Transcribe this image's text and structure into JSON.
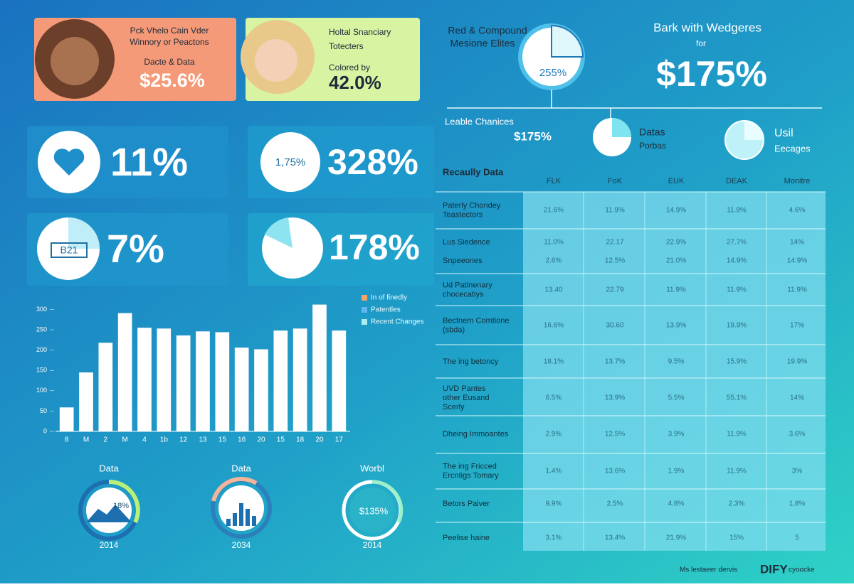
{
  "profile_cards": [
    {
      "lines": [
        "Pck Vhelo Cain Vder",
        "Winnory or Peactons"
      ],
      "caption": "Dacte & Data",
      "value": "$25.6%"
    },
    {
      "lines": [
        "Holtal Snanciary",
        "Totecters"
      ],
      "caption": "Colored by",
      "value": "42.0%"
    }
  ],
  "stat_cards": [
    {
      "value": "11%"
    },
    {
      "badge": "1,75%",
      "value": "328%"
    },
    {
      "badge": "B21",
      "value": "7%"
    },
    {
      "value": "178%"
    }
  ],
  "top_right": {
    "donut_title": [
      "Red & Compound",
      "Mesione Elites"
    ],
    "donut_value": "255%",
    "headline": "Bark with Wedgeres",
    "headline_sub": "for",
    "headline_value": "$175%",
    "left_label": "Leable Chanices",
    "left_value": "$175%",
    "mid_label": [
      "Datas",
      "Porbas"
    ],
    "right_label": [
      "Usil",
      "Eecages"
    ]
  },
  "chart_data": {
    "type": "bar",
    "categories": [
      "8",
      "M",
      "2",
      "M",
      "4",
      "1b",
      "12",
      "13",
      "15",
      "16",
      "20",
      "15",
      "18",
      "20",
      "17"
    ],
    "values": [
      59,
      145,
      218,
      291,
      255,
      253,
      236,
      246,
      244,
      206,
      202,
      248,
      253,
      312,
      248
    ],
    "color": "#ffffff",
    "ylim": [
      0,
      320
    ],
    "yticks": [
      0,
      50,
      100,
      150,
      200,
      250,
      300
    ]
  },
  "legend_items": [
    {
      "label": "In of finedly",
      "color": "#f4a46a"
    },
    {
      "label": "Patentles",
      "color": "#5fb8f0"
    },
    {
      "label": "Recent Changes",
      "color": "#a8eef0"
    }
  ],
  "gauges": [
    {
      "title": "Data",
      "value": "18%",
      "year": "2014"
    },
    {
      "title": "Data",
      "year": "2034"
    },
    {
      "title": "Worbl",
      "value": "$135%",
      "year": "2014"
    }
  ],
  "table": {
    "title": "Recaully Data",
    "columns": [
      "FLK",
      "FoK",
      "EUK",
      "DEAK",
      "Monitre"
    ],
    "rows": [
      {
        "label": [
          "Paterly Chondey",
          "Teastectors"
        ],
        "cells": [
          "21.6%",
          "11.9%",
          "14.9%",
          "11.9%",
          "4.6%"
        ]
      },
      {
        "label": [
          "Lus Siedence"
        ],
        "cells": [
          "11.0%",
          "22.17",
          "22.9%",
          "27.7%",
          "14%"
        ]
      },
      {
        "label": [
          "Snpeeones"
        ],
        "cells": [
          "2.6%",
          "12.5%",
          "21.0%",
          "14.9%",
          "14.9%"
        ]
      },
      {
        "label": [
          "Ud Patinenary",
          "chocecatiys"
        ],
        "cells": [
          "13.40",
          "22.79",
          "11.9%",
          "11.9%",
          "11.9%"
        ]
      },
      {
        "label": [
          "Bectnem Comtione",
          "(sbda)"
        ],
        "cells": [
          "16.6%",
          "30.60",
          "13.9%",
          "19.9%",
          "17%"
        ]
      },
      {
        "label": [
          "The ing betoncy"
        ],
        "cells": [
          "18.1%",
          "13.7%",
          "9.5%",
          "15.9%",
          "19.9%"
        ]
      },
      {
        "label": [
          "UVD Pantes",
          "other Eusand",
          "Scerly"
        ],
        "cells": [
          "6.5%",
          "13.9%",
          "5.5%",
          "55.1%",
          "14%"
        ]
      },
      {
        "label": [
          "Dheing Immoantes"
        ],
        "cells": [
          "2.9%",
          "12.5%",
          "3.9%",
          "11.9%",
          "3.6%"
        ]
      },
      {
        "label": [
          "The ing Fricced",
          "Ercntigs Tomary"
        ],
        "cells": [
          "1.4%",
          "13.6%",
          "1.9%",
          "11.9%",
          "3%"
        ]
      },
      {
        "label": [
          "Betors Paiver"
        ],
        "cells": [
          "9.9%",
          "2.5%",
          "4.8%",
          "2.3%",
          "1.8%"
        ]
      },
      {
        "label": [
          "Peelise haine"
        ],
        "cells": [
          "3.1%",
          "13.4%",
          "21.9%",
          "15%",
          "5"
        ]
      }
    ]
  },
  "footer": {
    "text": "Ms lestaeer dervis",
    "brand": "DIFY",
    "tail": "cyoocke"
  }
}
